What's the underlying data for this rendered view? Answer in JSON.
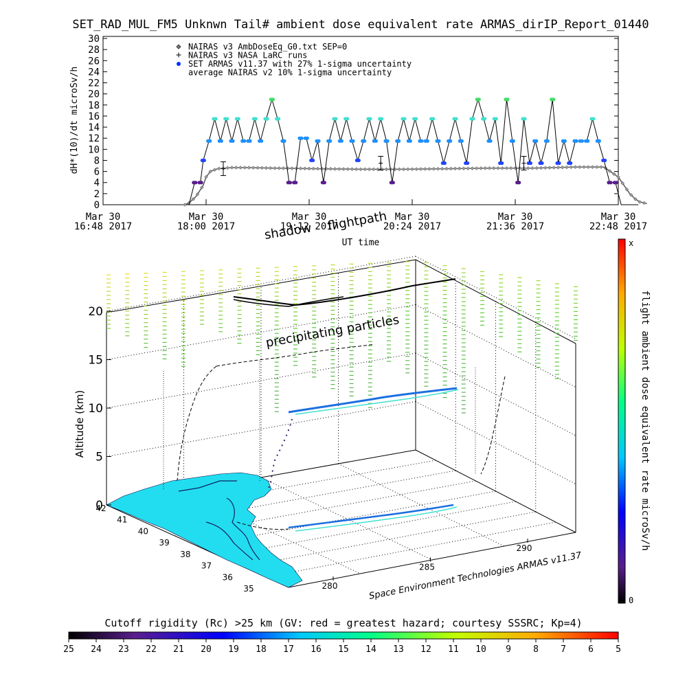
{
  "title": "SET_RAD_MUL_FM5 Unknwn Tail#  ambient dose equivalent rate ARMAS_dirIP_Report_01440",
  "chart_data": [
    {
      "type": "line",
      "ylabel": "dH*(10)/dt microSv/h",
      "xlabel": "UT time",
      "ylim": [
        0,
        30
      ],
      "yticks": [
        "0",
        "2",
        "4",
        "6",
        "8",
        "10",
        "12",
        "14",
        "16",
        "18",
        "20",
        "22",
        "24",
        "26",
        "28",
        "30"
      ],
      "xticks": [
        {
          "d": "Mar 30",
          "t": "16:48 2017"
        },
        {
          "d": "Mar 30",
          "t": "18:00 2017"
        },
        {
          "d": "Mar 30",
          "t": "19:12 2017"
        },
        {
          "d": "Mar 30",
          "t": "20:24 2017"
        },
        {
          "d": "Mar 30",
          "t": "21:36 2017"
        },
        {
          "d": "Mar 30",
          "t": "22:48 2017"
        }
      ],
      "legend": [
        "NAIRAS v3 AmbDoseEq_G0.txt SEP=0",
        "NAIRAS v3 NASA LaRC runs",
        "SET ARMAS v11.37 with 27% 1-sigma uncertainty",
        "average NAIRAS v2 10% 1-sigma uncertainty"
      ],
      "series": [
        {
          "name": "NAIRAS v3 AmbDoseEq_G0.txt SEP=0",
          "x_min": [
            57,
            60,
            65,
            70,
            72,
            75,
            80,
            90,
            100,
            120,
            150,
            180,
            210,
            240,
            270,
            300,
            330,
            350,
            360,
            368,
            372,
            375,
            380
          ],
          "values": [
            0,
            0.3,
            1.5,
            3.5,
            5,
            6,
            6.5,
            6.7,
            6.7,
            6.6,
            6.5,
            6.4,
            6.4,
            6.5,
            6.6,
            6.6,
            6.8,
            6.8,
            5,
            2,
            1,
            0.5,
            0.2
          ]
        },
        {
          "name": "SET ARMAS v11.37 with 27% 1-sigma uncertainty",
          "x_min": [
            60,
            64,
            68,
            70,
            74,
            78,
            82,
            86,
            90,
            94,
            98,
            102,
            106,
            110,
            114,
            118,
            122,
            126,
            130,
            134,
            138,
            142,
            146,
            150,
            154,
            158,
            162,
            166,
            170,
            174,
            178,
            182,
            186,
            190,
            194,
            198,
            202,
            206,
            210,
            214,
            218,
            222,
            226,
            230,
            234,
            238,
            242,
            246,
            250,
            254,
            258,
            262,
            266,
            270,
            274,
            278,
            282,
            286,
            290,
            294,
            298,
            302,
            306,
            310,
            314,
            318,
            322,
            326,
            330,
            334,
            338,
            342,
            346,
            350,
            354,
            358,
            362,
            366,
            370,
            374
          ],
          "values": [
            0,
            4,
            4,
            8,
            11.5,
            15.5,
            11.5,
            15.5,
            11.5,
            15.5,
            11.5,
            11.5,
            15.5,
            11.5,
            15.5,
            19,
            15.5,
            11.5,
            4,
            4,
            12,
            12,
            8,
            11.5,
            4,
            11.5,
            15.5,
            11.5,
            15.5,
            11.5,
            8,
            11.5,
            15.5,
            11.5,
            15.5,
            11.5,
            4,
            11.5,
            15.5,
            11.5,
            15.5,
            11.5,
            11.5,
            15.5,
            11.5,
            7.5,
            11.5,
            15.5,
            11.5,
            7.5,
            15.5,
            19,
            15.5,
            11.5,
            15.5,
            7.5,
            19,
            11.5,
            4,
            15.5,
            7.5,
            11.5,
            7.5,
            11.5,
            19,
            7.5,
            11.5,
            7.5,
            11.5,
            11.5,
            11.5,
            15.5,
            11.5,
            8,
            4,
            4,
            0,
            0,
            0,
            0
          ]
        },
        {
          "name": "NAIRAS v3 NASA LaRC runs",
          "x_min": [
            84,
            194,
            294
          ],
          "values": [
            6.5,
            7.5,
            7.5
          ]
        }
      ]
    },
    {
      "type": "scatter",
      "zlabel": "Altitude (km)",
      "zticks": [
        "0",
        "5",
        "10",
        "15",
        "20"
      ],
      "lat_ticks": [
        "42",
        "41",
        "40",
        "39",
        "38",
        "37",
        "36",
        "35"
      ],
      "lon_ticks": [
        "280",
        "285",
        "290"
      ],
      "annotations": [
        "flightpath",
        "shadow",
        "precipitating particles"
      ],
      "credit": "Space Environment Technologies ARMAS v11.37",
      "colorbar": {
        "label": "flight ambient dose equivalent rate microSv/h",
        "max": "x",
        "min": "0"
      }
    }
  ],
  "bottom_colorbar": {
    "label": "Cutoff rigidity (Rc) >25 km (GV: red = greatest hazard; courtesy SSSRC; Kp=4)",
    "ticks": [
      "25",
      "24",
      "23",
      "22",
      "21",
      "20",
      "19",
      "18",
      "17",
      "16",
      "15",
      "14",
      "13",
      "12",
      "11",
      "10",
      "9",
      "8",
      "7",
      "6",
      "5"
    ]
  },
  "colors": {
    "armas_low": "#5a1e8c",
    "armas_mid": "#2244ff",
    "armas_med": "#1e90ff",
    "armas_high": "#40e0d0",
    "armas_peak": "#44dd66",
    "land": "#22ddf0",
    "flight_track": "#000000"
  }
}
